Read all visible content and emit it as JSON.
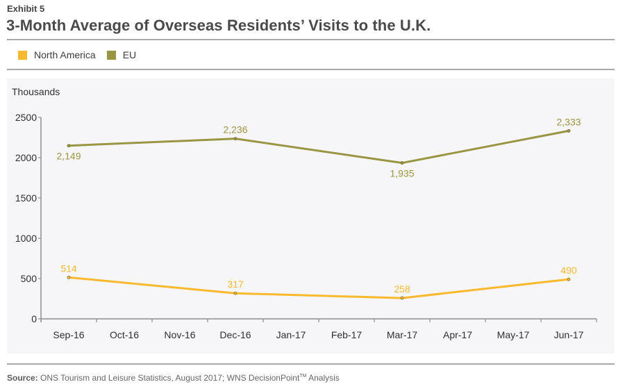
{
  "header": {
    "exhibit": "Exhibit 5",
    "title": "3-Month Average of Overseas Residents’ Visits to the U.K."
  },
  "legend": [
    {
      "label": "North America",
      "color": "#f8b92f"
    },
    {
      "label": "EU",
      "color": "#9a9542"
    }
  ],
  "footer": {
    "source_label": "Source:",
    "source_text": " ONS Tourism and Leisure Statistics, August 2017; WNS DecisionPoint",
    "tm": "TM",
    "source_suffix": " Analysis"
  },
  "chart_data": {
    "type": "line",
    "title": "3-Month Average of Overseas Residents’ Visits to the U.K.",
    "xlabel": "",
    "ylabel": "Thousands",
    "categories": [
      "Sep-16",
      "Oct-16",
      "Nov-16",
      "Dec-16",
      "Jan-17",
      "Feb-17",
      "Mar-17",
      "Apr-17",
      "May-17",
      "Jun-17"
    ],
    "ylim": [
      0,
      2500
    ],
    "yticks": [
      0,
      500,
      1000,
      1500,
      2000,
      2500
    ],
    "grid": false,
    "legend_position": "top-left",
    "series": [
      {
        "name": "North America",
        "color": "#f8b92f",
        "points": [
          {
            "x": "Sep-16",
            "y": 514,
            "label": "514"
          },
          {
            "x": "Dec-16",
            "y": 317,
            "label": "317"
          },
          {
            "x": "Mar-17",
            "y": 258,
            "label": "258"
          },
          {
            "x": "Jun-17",
            "y": 490,
            "label": "490"
          }
        ]
      },
      {
        "name": "EU",
        "color": "#9a9542",
        "points": [
          {
            "x": "Sep-16",
            "y": 2149,
            "label": "2,149"
          },
          {
            "x": "Dec-16",
            "y": 2236,
            "label": "2,236"
          },
          {
            "x": "Mar-17",
            "y": 1935,
            "label": "1,935"
          },
          {
            "x": "Jun-17",
            "y": 2333,
            "label": "2,333"
          }
        ]
      }
    ]
  }
}
